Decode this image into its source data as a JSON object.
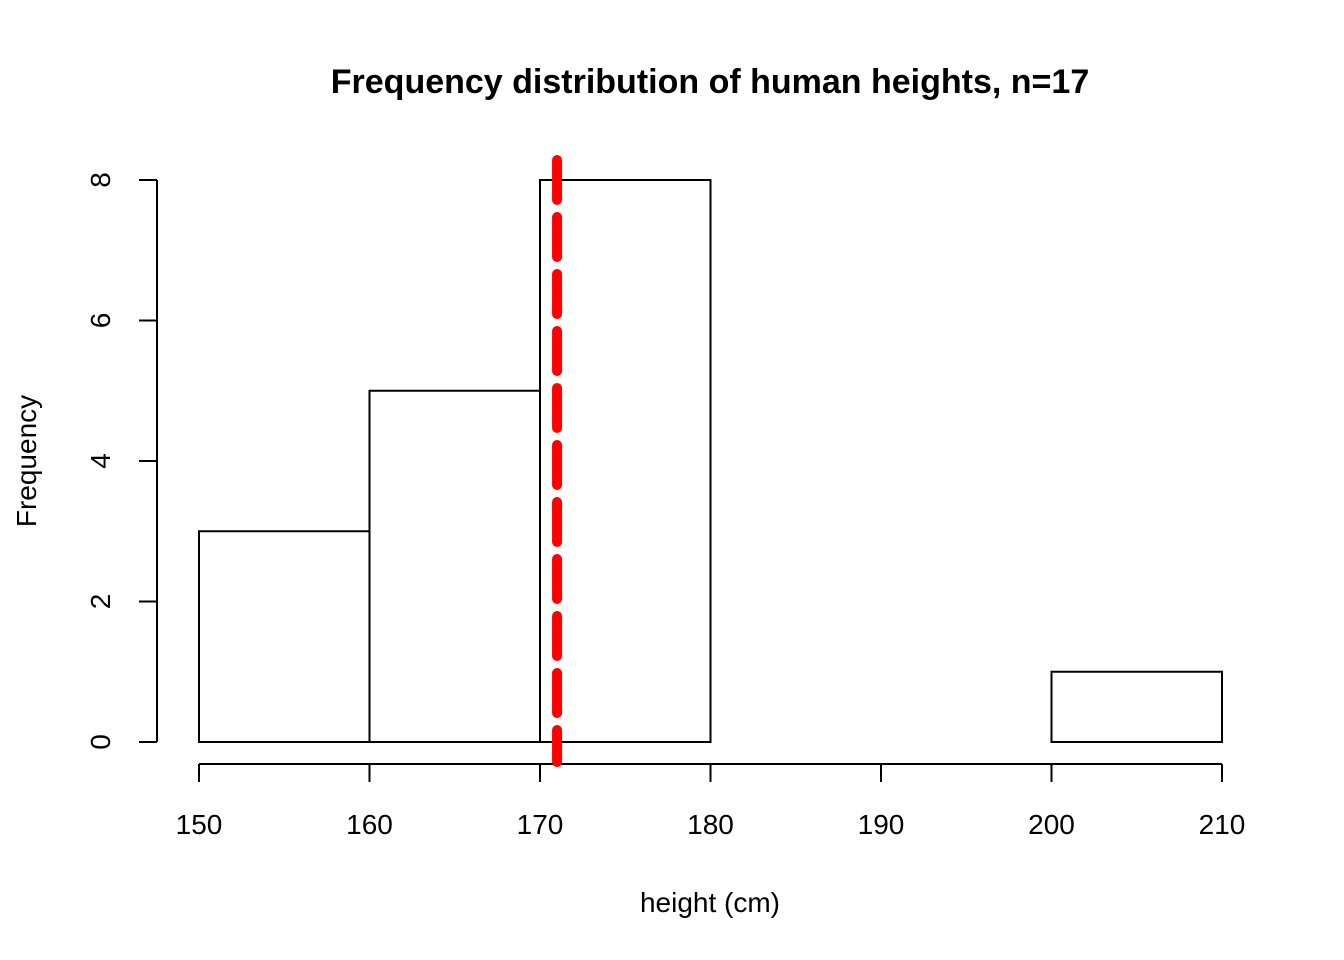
{
  "chart_data": {
    "type": "bar",
    "title": "Frequency distribution of human heights, n=17",
    "xlabel": "height (cm)",
    "ylabel": "Frequency",
    "bins": [
      {
        "start": 150,
        "end": 160,
        "count": 3
      },
      {
        "start": 160,
        "end": 170,
        "count": 5
      },
      {
        "start": 170,
        "end": 180,
        "count": 8
      },
      {
        "start": 180,
        "end": 190,
        "count": 0
      },
      {
        "start": 190,
        "end": 200,
        "count": 0
      },
      {
        "start": 200,
        "end": 210,
        "count": 1
      }
    ],
    "xlim": [
      150,
      210
    ],
    "ylim": [
      0,
      8
    ],
    "x_ticks": [
      150,
      160,
      170,
      180,
      190,
      200,
      210
    ],
    "y_ticks": [
      0,
      2,
      4,
      6,
      8
    ],
    "reference_line": {
      "x": 171,
      "color": "#ff0000",
      "style": "dashed"
    },
    "bar_fill": "#ffffff",
    "bar_stroke": "#000000",
    "grid": false,
    "legend": "none"
  }
}
